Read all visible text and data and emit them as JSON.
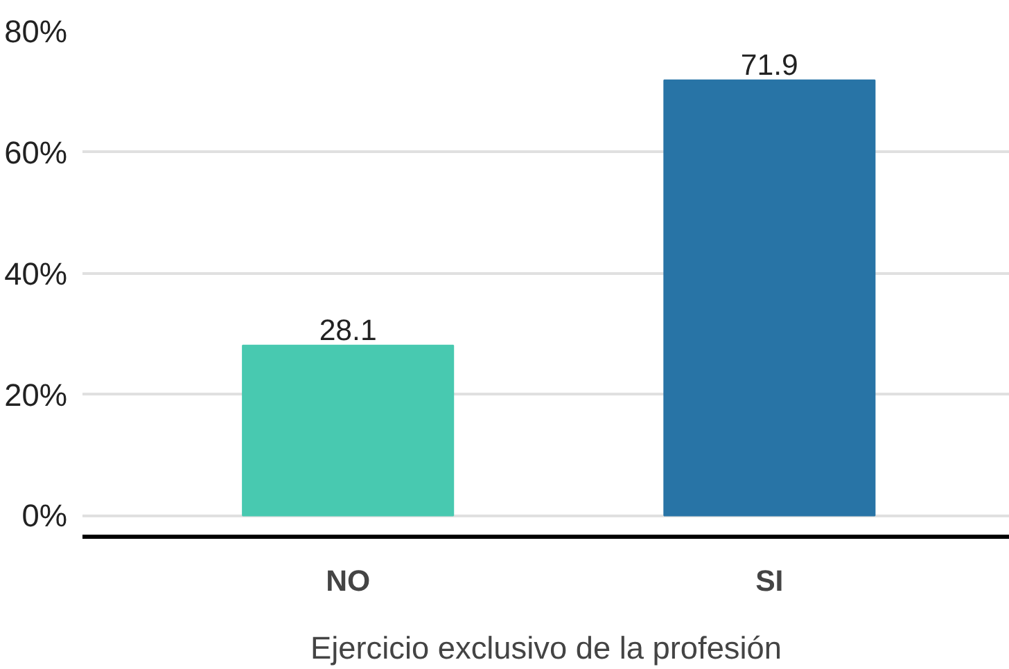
{
  "chart_data": {
    "type": "bar",
    "xlabel": "Ejercicio exclusivo de la profesión",
    "categories": [
      "NO",
      "SI"
    ],
    "values": [
      28.1,
      71.9
    ],
    "colors": [
      "#48c9b0",
      "#2874a6"
    ],
    "ylim": [
      -3.5,
      80
    ],
    "yticks": [
      {
        "value": 0,
        "label": "0%"
      },
      {
        "value": 20,
        "label": "20%"
      },
      {
        "value": 40,
        "label": "40%"
      },
      {
        "value": 60,
        "label": "60%"
      },
      {
        "value": 80,
        "label": "80%"
      }
    ],
    "grid": "y",
    "data_labels": true
  }
}
